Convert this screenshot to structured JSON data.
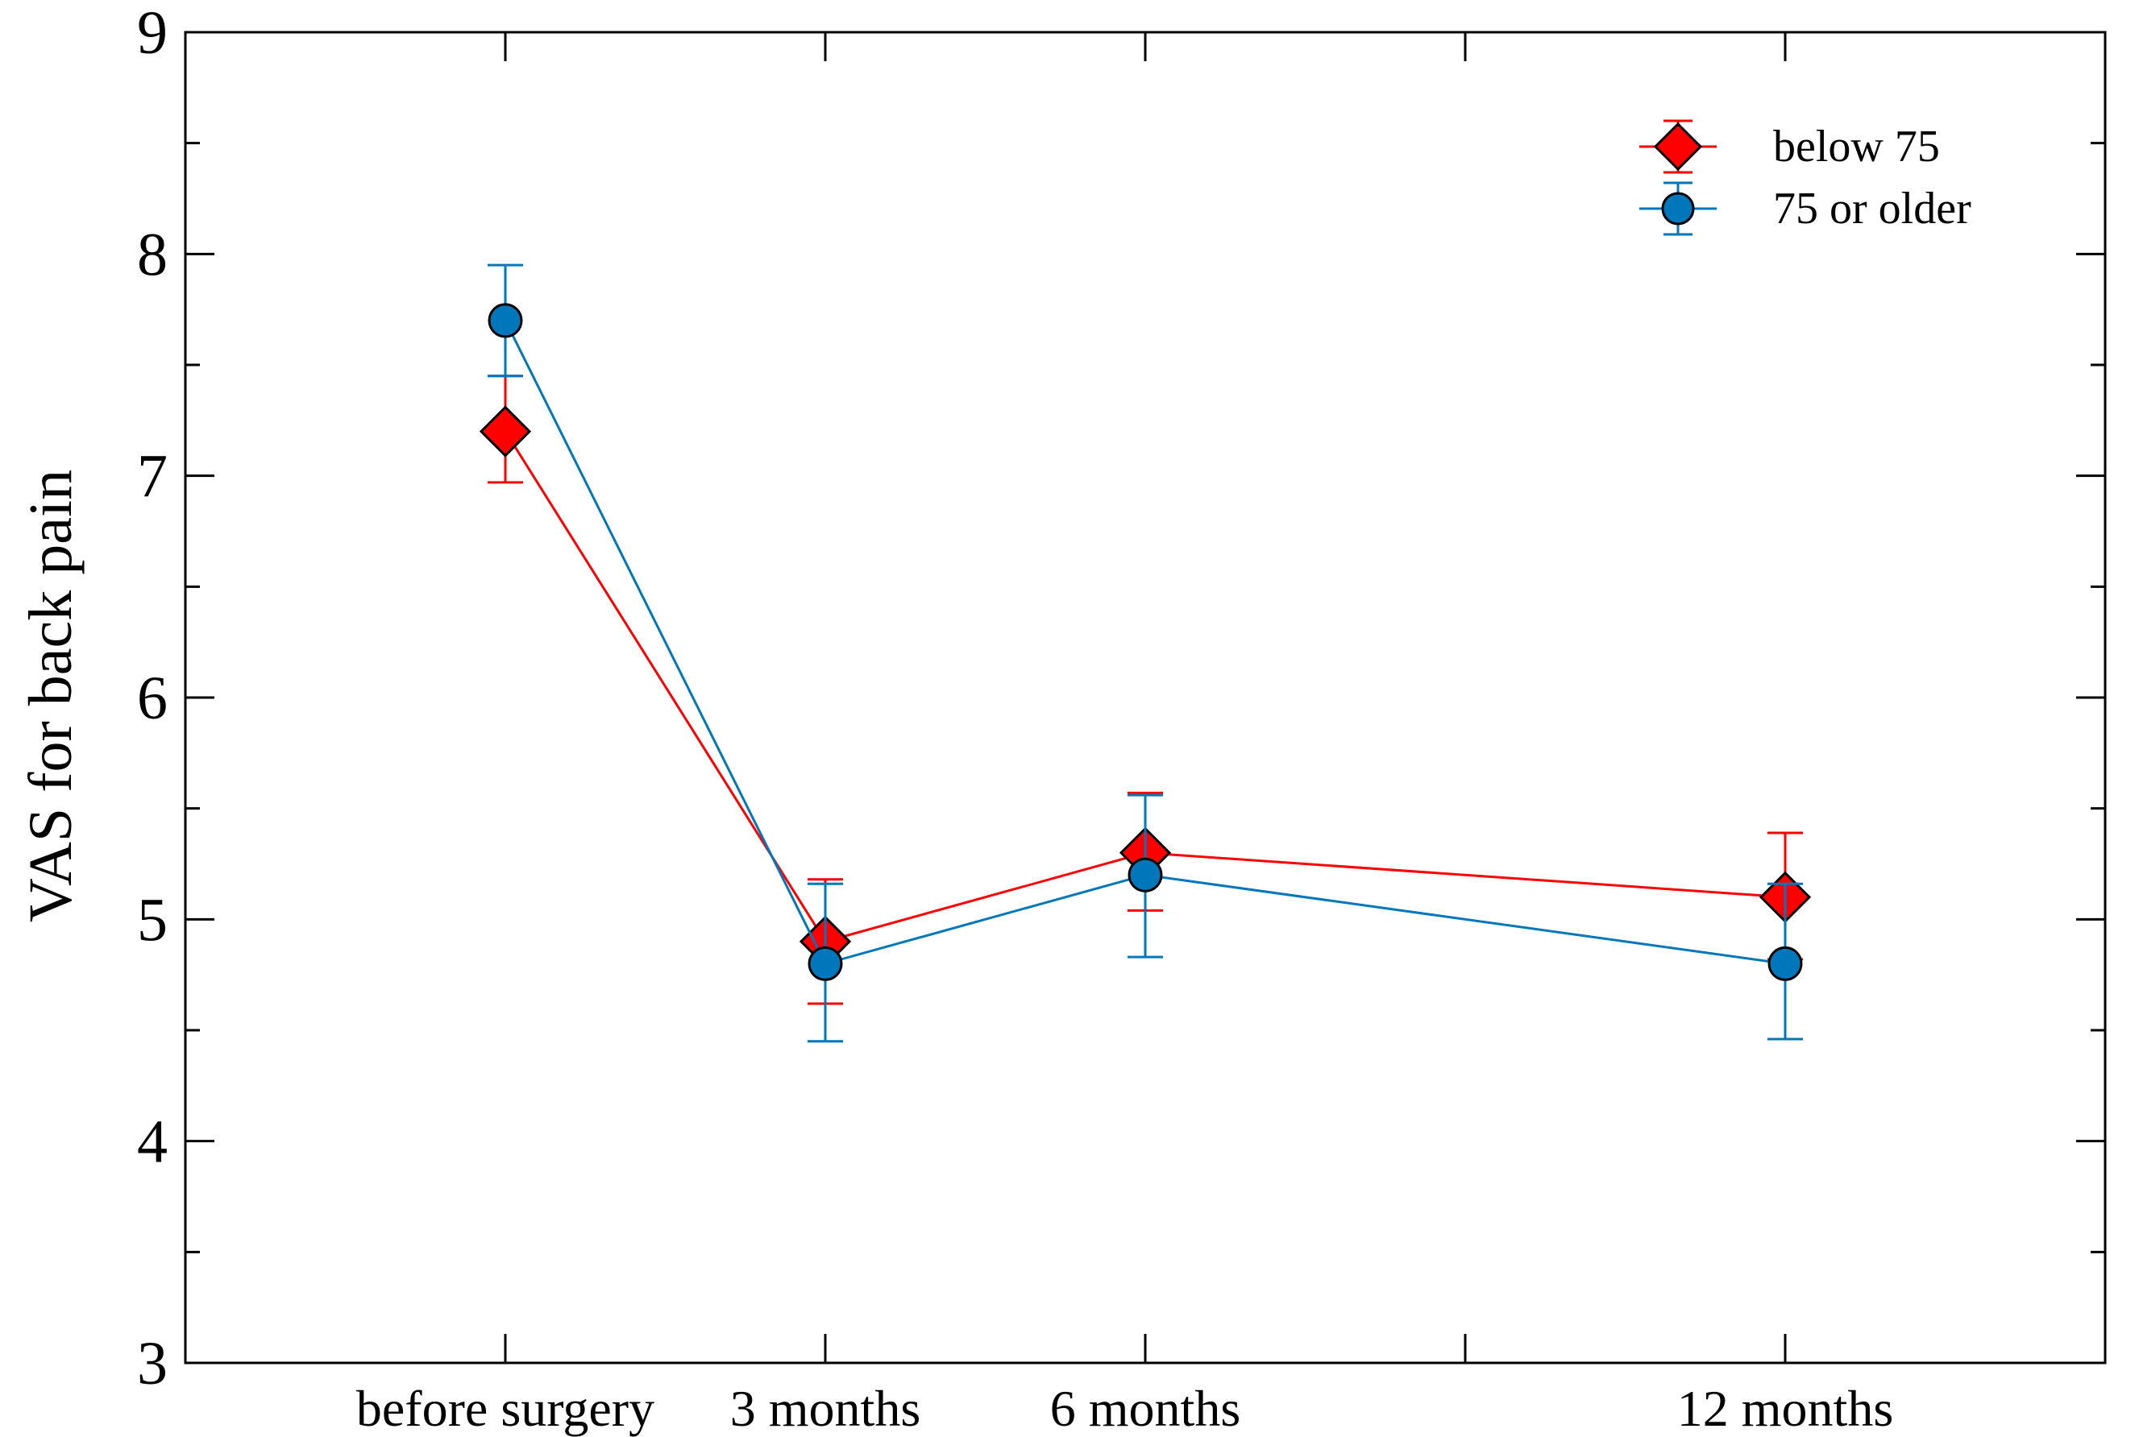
{
  "chart_data": {
    "type": "line",
    "title": "",
    "xlabel": "",
    "ylabel": "VAS for back pain",
    "x_positions": [
      1,
      2,
      3,
      5
    ],
    "categories": [
      "before surgery",
      "3 months",
      "6 months",
      "12 months"
    ],
    "xlim": [
      0,
      6
    ],
    "x_minor_ticks": [
      1,
      2,
      3,
      4,
      5
    ],
    "ylim": [
      3,
      9
    ],
    "y_ticks": [
      3,
      4,
      5,
      6,
      7,
      8,
      9
    ],
    "y_tick_labels": [
      "3",
      "4",
      "5",
      "6",
      "7",
      "8",
      "9"
    ],
    "grid": false,
    "legend_position": "top-right",
    "series": [
      {
        "name": "below 75",
        "color": "#ff0000",
        "marker": "diamond",
        "values": [
          7.2,
          4.9,
          5.3,
          5.1
        ],
        "err_low": [
          6.97,
          4.62,
          5.04,
          4.82
        ],
        "err_high": [
          7.45,
          5.18,
          5.57,
          5.39
        ]
      },
      {
        "name": "75 or older",
        "color": "#0077bb",
        "marker": "circle",
        "values": [
          7.7,
          4.8,
          5.2,
          4.8
        ],
        "err_low": [
          7.45,
          4.45,
          4.83,
          4.46
        ],
        "err_high": [
          7.95,
          5.16,
          5.56,
          5.16
        ]
      }
    ]
  }
}
